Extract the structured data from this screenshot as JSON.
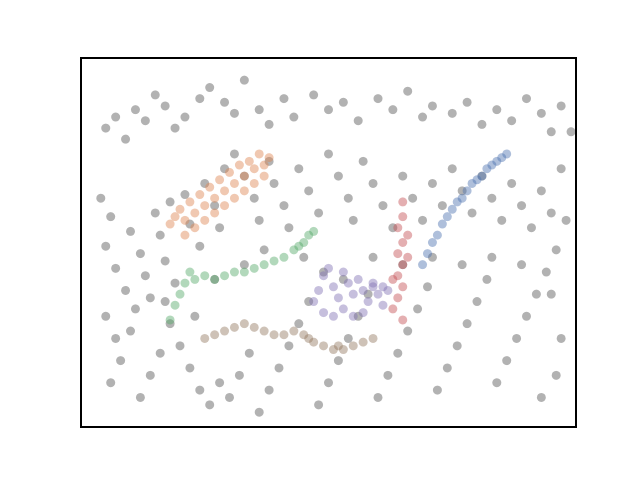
{
  "chart_data": {
    "type": "scatter",
    "title": "",
    "xlabel": "",
    "ylabel": "",
    "xlim": [
      0,
      1
    ],
    "ylim": [
      0,
      1
    ],
    "grid": false,
    "axes_visible": false,
    "point_alpha": 0.45,
    "colors": {
      "noise": "#555555",
      "orange": "#dd8452",
      "green": "#55a868",
      "brown": "#937860",
      "purple": "#8172b3",
      "red": "#c44e52",
      "blue": "#4c72b0"
    },
    "series": [
      {
        "cluster": "noise",
        "color": "#555555",
        "points": [
          [
            0.05,
            0.81
          ],
          [
            0.07,
            0.84
          ],
          [
            0.09,
            0.78
          ],
          [
            0.11,
            0.86
          ],
          [
            0.13,
            0.83
          ],
          [
            0.15,
            0.9
          ],
          [
            0.17,
            0.87
          ],
          [
            0.19,
            0.81
          ],
          [
            0.21,
            0.84
          ],
          [
            0.24,
            0.89
          ],
          [
            0.26,
            0.92
          ],
          [
            0.29,
            0.88
          ],
          [
            0.31,
            0.85
          ],
          [
            0.33,
            0.94
          ],
          [
            0.36,
            0.86
          ],
          [
            0.38,
            0.82
          ],
          [
            0.41,
            0.89
          ],
          [
            0.43,
            0.84
          ],
          [
            0.47,
            0.9
          ],
          [
            0.5,
            0.86
          ],
          [
            0.53,
            0.88
          ],
          [
            0.56,
            0.83
          ],
          [
            0.6,
            0.89
          ],
          [
            0.63,
            0.86
          ],
          [
            0.66,
            0.91
          ],
          [
            0.69,
            0.84
          ],
          [
            0.71,
            0.87
          ],
          [
            0.75,
            0.85
          ],
          [
            0.78,
            0.88
          ],
          [
            0.81,
            0.82
          ],
          [
            0.84,
            0.86
          ],
          [
            0.87,
            0.83
          ],
          [
            0.9,
            0.89
          ],
          [
            0.93,
            0.85
          ],
          [
            0.95,
            0.8
          ],
          [
            0.97,
            0.87
          ],
          [
            0.04,
            0.62
          ],
          [
            0.06,
            0.57
          ],
          [
            0.05,
            0.49
          ],
          [
            0.07,
            0.43
          ],
          [
            0.09,
            0.37
          ],
          [
            0.1,
            0.53
          ],
          [
            0.12,
            0.47
          ],
          [
            0.13,
            0.41
          ],
          [
            0.14,
            0.35
          ],
          [
            0.15,
            0.58
          ],
          [
            0.16,
            0.52
          ],
          [
            0.18,
            0.61
          ],
          [
            0.17,
            0.45
          ],
          [
            0.19,
            0.39
          ],
          [
            0.21,
            0.63
          ],
          [
            0.22,
            0.55
          ],
          [
            0.24,
            0.49
          ],
          [
            0.25,
            0.66
          ],
          [
            0.27,
            0.6
          ],
          [
            0.28,
            0.54
          ],
          [
            0.29,
            0.7
          ],
          [
            0.31,
            0.74
          ],
          [
            0.33,
            0.68
          ],
          [
            0.35,
            0.62
          ],
          [
            0.36,
            0.56
          ],
          [
            0.38,
            0.72
          ],
          [
            0.39,
            0.66
          ],
          [
            0.41,
            0.6
          ],
          [
            0.42,
            0.54
          ],
          [
            0.44,
            0.7
          ],
          [
            0.46,
            0.64
          ],
          [
            0.48,
            0.58
          ],
          [
            0.5,
            0.74
          ],
          [
            0.52,
            0.68
          ],
          [
            0.54,
            0.62
          ],
          [
            0.55,
            0.56
          ],
          [
            0.57,
            0.72
          ],
          [
            0.59,
            0.66
          ],
          [
            0.61,
            0.6
          ],
          [
            0.63,
            0.54
          ],
          [
            0.65,
            0.68
          ],
          [
            0.67,
            0.62
          ],
          [
            0.69,
            0.56
          ],
          [
            0.71,
            0.66
          ],
          [
            0.73,
            0.6
          ],
          [
            0.75,
            0.7
          ],
          [
            0.77,
            0.64
          ],
          [
            0.79,
            0.58
          ],
          [
            0.81,
            0.68
          ],
          [
            0.83,
            0.62
          ],
          [
            0.85,
            0.56
          ],
          [
            0.87,
            0.66
          ],
          [
            0.89,
            0.6
          ],
          [
            0.91,
            0.54
          ],
          [
            0.93,
            0.64
          ],
          [
            0.95,
            0.58
          ],
          [
            0.97,
            0.7
          ],
          [
            0.96,
            0.48
          ],
          [
            0.94,
            0.42
          ],
          [
            0.92,
            0.36
          ],
          [
            0.9,
            0.3
          ],
          [
            0.88,
            0.24
          ],
          [
            0.86,
            0.18
          ],
          [
            0.84,
            0.12
          ],
          [
            0.82,
            0.4
          ],
          [
            0.8,
            0.34
          ],
          [
            0.78,
            0.28
          ],
          [
            0.76,
            0.22
          ],
          [
            0.74,
            0.16
          ],
          [
            0.72,
            0.1
          ],
          [
            0.7,
            0.38
          ],
          [
            0.68,
            0.32
          ],
          [
            0.66,
            0.26
          ],
          [
            0.64,
            0.2
          ],
          [
            0.62,
            0.14
          ],
          [
            0.6,
            0.08
          ],
          [
            0.58,
            0.36
          ],
          [
            0.56,
            0.3
          ],
          [
            0.54,
            0.24
          ],
          [
            0.52,
            0.18
          ],
          [
            0.5,
            0.12
          ],
          [
            0.48,
            0.06
          ],
          [
            0.46,
            0.34
          ],
          [
            0.44,
            0.28
          ],
          [
            0.42,
            0.22
          ],
          [
            0.4,
            0.16
          ],
          [
            0.38,
            0.1
          ],
          [
            0.36,
            0.04
          ],
          [
            0.34,
            0.2
          ],
          [
            0.32,
            0.14
          ],
          [
            0.3,
            0.08
          ],
          [
            0.28,
            0.12
          ],
          [
            0.26,
            0.06
          ],
          [
            0.24,
            0.1
          ],
          [
            0.22,
            0.16
          ],
          [
            0.2,
            0.22
          ],
          [
            0.18,
            0.28
          ],
          [
            0.16,
            0.2
          ],
          [
            0.14,
            0.14
          ],
          [
            0.12,
            0.08
          ],
          [
            0.1,
            0.26
          ],
          [
            0.08,
            0.18
          ],
          [
            0.06,
            0.12
          ],
          [
            0.05,
            0.3
          ],
          [
            0.07,
            0.24
          ],
          [
            0.11,
            0.32
          ],
          [
            0.17,
            0.34
          ],
          [
            0.23,
            0.3
          ],
          [
            0.27,
            0.4
          ],
          [
            0.33,
            0.44
          ],
          [
            0.37,
            0.48
          ],
          [
            0.45,
            0.46
          ],
          [
            0.49,
            0.42
          ],
          [
            0.53,
            0.4
          ],
          [
            0.59,
            0.46
          ],
          [
            0.65,
            0.44
          ],
          [
            0.71,
            0.46
          ],
          [
            0.77,
            0.44
          ],
          [
            0.83,
            0.46
          ],
          [
            0.89,
            0.44
          ],
          [
            0.95,
            0.36
          ],
          [
            0.97,
            0.24
          ],
          [
            0.96,
            0.14
          ],
          [
            0.93,
            0.08
          ],
          [
            0.98,
            0.56
          ],
          [
            0.99,
            0.8
          ]
        ]
      },
      {
        "cluster": "orange",
        "color": "#dd8452",
        "points": [
          [
            0.18,
            0.55
          ],
          [
            0.19,
            0.57
          ],
          [
            0.2,
            0.59
          ],
          [
            0.21,
            0.56
          ],
          [
            0.22,
            0.61
          ],
          [
            0.23,
            0.58
          ],
          [
            0.24,
            0.63
          ],
          [
            0.25,
            0.6
          ],
          [
            0.26,
            0.65
          ],
          [
            0.27,
            0.62
          ],
          [
            0.28,
            0.67
          ],
          [
            0.29,
            0.64
          ],
          [
            0.3,
            0.69
          ],
          [
            0.31,
            0.66
          ],
          [
            0.32,
            0.71
          ],
          [
            0.33,
            0.68
          ],
          [
            0.34,
            0.72
          ],
          [
            0.35,
            0.7
          ],
          [
            0.36,
            0.74
          ],
          [
            0.37,
            0.71
          ],
          [
            0.21,
            0.52
          ],
          [
            0.23,
            0.54
          ],
          [
            0.25,
            0.56
          ],
          [
            0.27,
            0.58
          ],
          [
            0.29,
            0.6
          ],
          [
            0.31,
            0.62
          ],
          [
            0.33,
            0.64
          ],
          [
            0.35,
            0.66
          ],
          [
            0.37,
            0.68
          ],
          [
            0.38,
            0.73
          ]
        ]
      },
      {
        "cluster": "green",
        "color": "#55a868",
        "points": [
          [
            0.18,
            0.29
          ],
          [
            0.19,
            0.33
          ],
          [
            0.2,
            0.36
          ],
          [
            0.21,
            0.39
          ],
          [
            0.22,
            0.42
          ],
          [
            0.23,
            0.4
          ],
          [
            0.25,
            0.41
          ],
          [
            0.27,
            0.4
          ],
          [
            0.29,
            0.41
          ],
          [
            0.31,
            0.42
          ],
          [
            0.33,
            0.42
          ],
          [
            0.35,
            0.43
          ],
          [
            0.37,
            0.44
          ],
          [
            0.39,
            0.45
          ],
          [
            0.41,
            0.46
          ],
          [
            0.43,
            0.48
          ],
          [
            0.45,
            0.5
          ],
          [
            0.46,
            0.52
          ],
          [
            0.47,
            0.53
          ],
          [
            0.44,
            0.49
          ]
        ]
      },
      {
        "cluster": "brown",
        "color": "#937860",
        "points": [
          [
            0.25,
            0.24
          ],
          [
            0.27,
            0.25
          ],
          [
            0.29,
            0.26
          ],
          [
            0.31,
            0.27
          ],
          [
            0.33,
            0.28
          ],
          [
            0.35,
            0.27
          ],
          [
            0.37,
            0.26
          ],
          [
            0.39,
            0.25
          ],
          [
            0.41,
            0.25
          ],
          [
            0.43,
            0.26
          ],
          [
            0.45,
            0.25
          ],
          [
            0.47,
            0.23
          ],
          [
            0.49,
            0.22
          ],
          [
            0.51,
            0.21
          ],
          [
            0.53,
            0.21
          ],
          [
            0.55,
            0.22
          ],
          [
            0.57,
            0.23
          ],
          [
            0.59,
            0.24
          ],
          [
            0.46,
            0.24
          ],
          [
            0.52,
            0.22
          ]
        ]
      },
      {
        "cluster": "purple",
        "color": "#8172b3",
        "points": [
          [
            0.47,
            0.34
          ],
          [
            0.48,
            0.37
          ],
          [
            0.49,
            0.41
          ],
          [
            0.5,
            0.43
          ],
          [
            0.51,
            0.38
          ],
          [
            0.52,
            0.35
          ],
          [
            0.53,
            0.42
          ],
          [
            0.54,
            0.39
          ],
          [
            0.55,
            0.36
          ],
          [
            0.56,
            0.4
          ],
          [
            0.57,
            0.37
          ],
          [
            0.58,
            0.34
          ],
          [
            0.59,
            0.38
          ],
          [
            0.6,
            0.36
          ],
          [
            0.61,
            0.33
          ],
          [
            0.49,
            0.31
          ],
          [
            0.51,
            0.3
          ],
          [
            0.53,
            0.32
          ],
          [
            0.55,
            0.3
          ],
          [
            0.57,
            0.31
          ],
          [
            0.59,
            0.39
          ],
          [
            0.61,
            0.38
          ],
          [
            0.62,
            0.37
          ]
        ]
      },
      {
        "cluster": "red",
        "color": "#c44e52",
        "points": [
          [
            0.65,
            0.61
          ],
          [
            0.65,
            0.57
          ],
          [
            0.64,
            0.54
          ],
          [
            0.65,
            0.5
          ],
          [
            0.64,
            0.47
          ],
          [
            0.65,
            0.44
          ],
          [
            0.64,
            0.41
          ],
          [
            0.65,
            0.38
          ],
          [
            0.64,
            0.35
          ],
          [
            0.63,
            0.4
          ],
          [
            0.66,
            0.46
          ],
          [
            0.66,
            0.52
          ],
          [
            0.63,
            0.32
          ],
          [
            0.65,
            0.29
          ]
        ]
      },
      {
        "cluster": "blue",
        "color": "#4c72b0",
        "points": [
          [
            0.69,
            0.44
          ],
          [
            0.7,
            0.47
          ],
          [
            0.71,
            0.5
          ],
          [
            0.72,
            0.52
          ],
          [
            0.73,
            0.55
          ],
          [
            0.74,
            0.57
          ],
          [
            0.75,
            0.59
          ],
          [
            0.76,
            0.61
          ],
          [
            0.77,
            0.62
          ],
          [
            0.78,
            0.64
          ],
          [
            0.79,
            0.66
          ],
          [
            0.8,
            0.67
          ],
          [
            0.81,
            0.68
          ],
          [
            0.82,
            0.7
          ],
          [
            0.83,
            0.71
          ],
          [
            0.84,
            0.72
          ],
          [
            0.85,
            0.73
          ],
          [
            0.86,
            0.74
          ]
        ]
      }
    ]
  }
}
